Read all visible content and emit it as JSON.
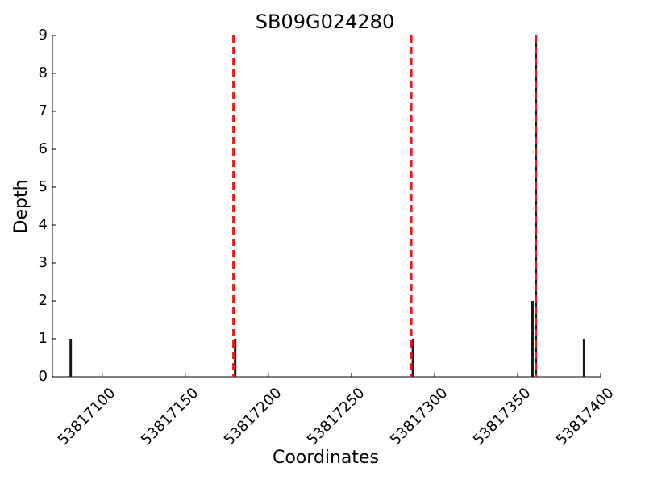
{
  "chart_data": {
    "type": "bar",
    "title": "SB09G024280",
    "xlabel": "Coordinates",
    "ylabel": "Depth",
    "x": [
      53817081,
      53817180,
      53817287,
      53817359,
      53817361,
      53817390
    ],
    "values": [
      1,
      1,
      1,
      2,
      9,
      1
    ],
    "color": "#1a1a1a",
    "vlines": [
      53817179,
      53817286,
      53817361
    ],
    "vline_color": "#e8191b",
    "xlim": [
      53817070,
      53817400
    ],
    "xticks": [
      53817100,
      53817150,
      53817200,
      53817250,
      53817300,
      53817350,
      53817400
    ],
    "ylim": [
      0,
      9
    ],
    "yticks": [
      0,
      1,
      2,
      3,
      4,
      5,
      6,
      7,
      8,
      9
    ],
    "grid": false
  }
}
